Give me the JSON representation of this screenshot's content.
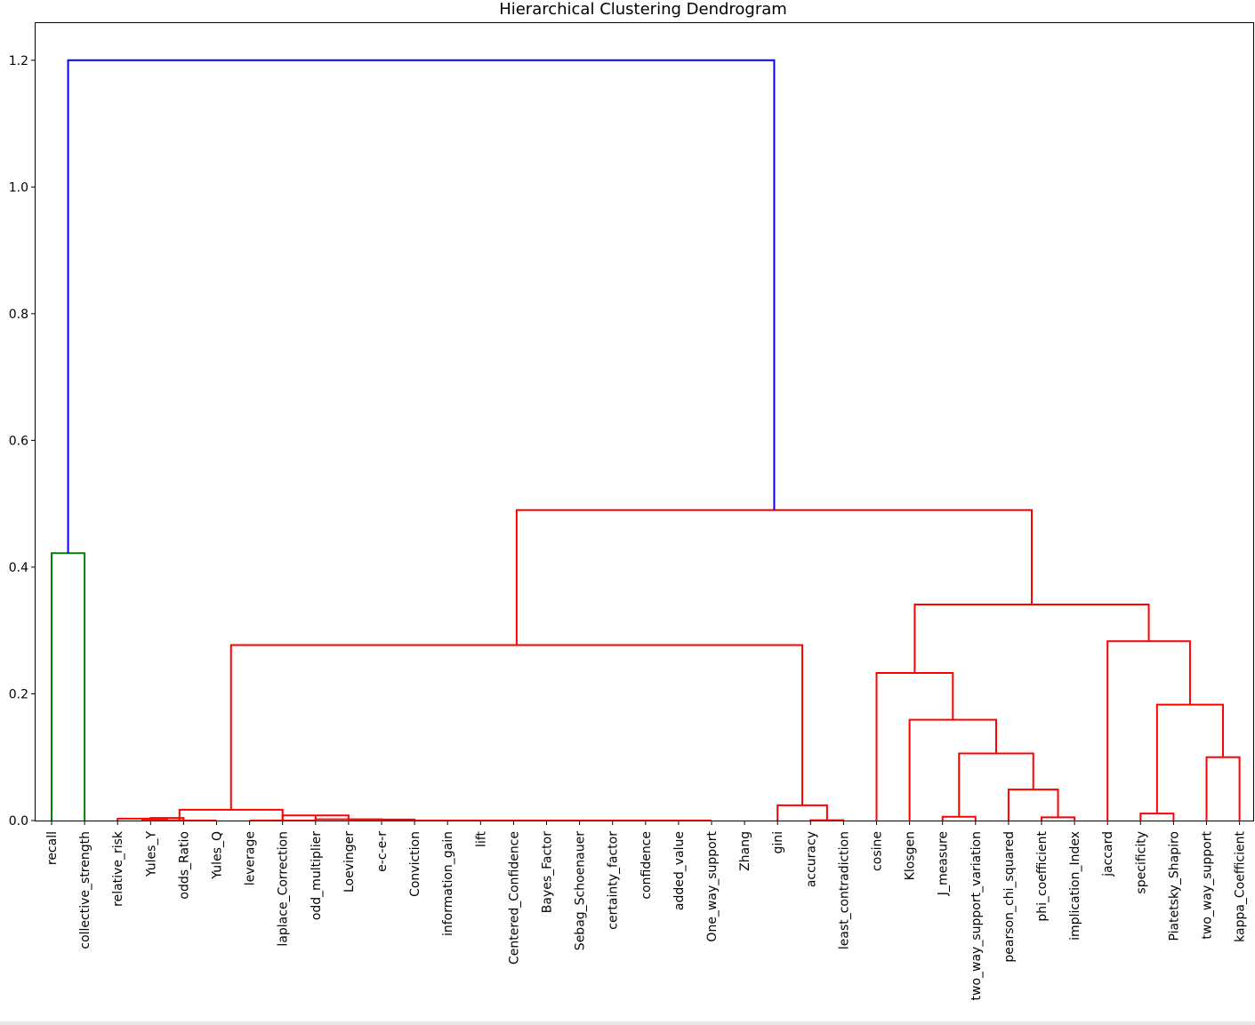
{
  "chart_data": {
    "type": "dendrogram",
    "title": "Hierarchical Clustering Dendrogram",
    "xlabel": "",
    "ylabel": "",
    "ylim": [
      0,
      1.26
    ],
    "yticks": [
      "0.0",
      "0.2",
      "0.4",
      "0.6",
      "0.8",
      "1.0",
      "1.2"
    ],
    "grid": false,
    "colors": {
      "root": "#0000ff",
      "cluster1": "#008000",
      "cluster2": "#ff0000",
      "frame": "#000000"
    },
    "leaves": [
      "recall",
      "collective_strength",
      "relative_risk",
      "Yules_Y",
      "odds_Ratio",
      "Yules_Q",
      "leverage",
      "laplace_Correction",
      "odd_multiplier",
      "Loevinger",
      "e-c-e-r",
      "Conviction",
      "information_gain",
      "lift",
      "Centered_Confidence",
      "Bayes_Factor",
      "Sebag_Schoenauer",
      "certainty_factor",
      "confidence",
      "added_value",
      "One_way_support",
      "Zhang",
      "gini",
      "accuracy",
      "least_contradiction",
      "cosine",
      "Klosgen",
      "J_measure",
      "two_way_support_variation",
      "pearson_chi_squared",
      "phi_coefficient",
      "implication_Index",
      "jaccard",
      "specificity",
      "Piatetsky_Shapiro",
      "two_way_support",
      "kappa_Coefficient"
    ],
    "merges": [
      {
        "id": "a",
        "left": 0,
        "right": 1,
        "height": 0.422,
        "color": "cluster1"
      },
      {
        "id": "b",
        "left": 3,
        "right": 4,
        "height": 0.004,
        "color": "cluster2"
      },
      {
        "id": "c",
        "left": 2,
        "right": "b",
        "height": 0.003,
        "color": "cluster2"
      },
      {
        "id": "d",
        "left": 19,
        "right": 20,
        "height": 0.0,
        "color": "cluster2"
      },
      {
        "id": "e",
        "left": 18,
        "right": "d",
        "height": 0.0,
        "color": "cluster2"
      },
      {
        "id": "f",
        "left": 17,
        "right": "e",
        "height": 0.0,
        "color": "cluster2"
      },
      {
        "id": "g",
        "left": 16,
        "right": "f",
        "height": 0.0,
        "color": "cluster2"
      },
      {
        "id": "h",
        "left": 15,
        "right": "g",
        "height": 0.0,
        "color": "cluster2"
      },
      {
        "id": "i",
        "left": 14,
        "right": "h",
        "height": 0.0,
        "color": "cluster2"
      },
      {
        "id": "j",
        "left": 13,
        "right": "i",
        "height": 0.0,
        "color": "cluster2"
      },
      {
        "id": "k",
        "left": 12,
        "right": "j",
        "height": 0.0,
        "color": "cluster2"
      },
      {
        "id": "l",
        "left": 11,
        "right": "k",
        "height": 0.0,
        "color": "cluster2"
      },
      {
        "id": "m",
        "left": 10,
        "right": "l",
        "height": 0.0,
        "color": "cluster2"
      },
      {
        "id": "n",
        "left": 9,
        "right": "m",
        "height": 0.0015,
        "color": "cluster2"
      },
      {
        "id": "o",
        "left": 8,
        "right": "n",
        "height": 0.002,
        "color": "cluster2"
      },
      {
        "id": "p",
        "left": 7,
        "right": "o",
        "height": 0.008,
        "color": "cluster2"
      },
      {
        "id": "q",
        "left": 6,
        "right": "p",
        "height": 0.0,
        "color": "cluster2"
      },
      {
        "id": "r",
        "left": "c",
        "right": 5,
        "height": 0.0,
        "color": "cluster2"
      },
      {
        "id": "s",
        "left": "r",
        "right": "q",
        "height": 0.017,
        "color": "cluster2"
      },
      {
        "id": "t",
        "left": 23,
        "right": 24,
        "height": 0.0005,
        "color": "cluster2"
      },
      {
        "id": "u",
        "left": 22,
        "right": "t",
        "height": 0.024,
        "color": "cluster2"
      },
      {
        "id": "v",
        "left": "s",
        "right": "u",
        "height": 0.277,
        "color": "cluster2"
      },
      {
        "id": "w",
        "left": 27,
        "right": 28,
        "height": 0.006,
        "color": "cluster2"
      },
      {
        "id": "x",
        "left": 30,
        "right": 31,
        "height": 0.005,
        "color": "cluster2"
      },
      {
        "id": "y",
        "left": 29,
        "right": "x",
        "height": 0.049,
        "color": "cluster2"
      },
      {
        "id": "z",
        "left": "w",
        "right": "y",
        "height": 0.106,
        "color": "cluster2"
      },
      {
        "id": "aa",
        "left": 26,
        "right": "z",
        "height": 0.159,
        "color": "cluster2"
      },
      {
        "id": "ab",
        "left": 25,
        "right": "aa",
        "height": 0.233,
        "color": "cluster2"
      },
      {
        "id": "ac",
        "left": 33,
        "right": 34,
        "height": 0.011,
        "color": "cluster2"
      },
      {
        "id": "ad",
        "left": 35,
        "right": 36,
        "height": 0.1,
        "color": "cluster2"
      },
      {
        "id": "ae",
        "left": "ac",
        "right": "ad",
        "height": 0.183,
        "color": "cluster2"
      },
      {
        "id": "af",
        "left": 32,
        "right": "ae",
        "height": 0.283,
        "color": "cluster2"
      },
      {
        "id": "ag",
        "left": "ab",
        "right": "af",
        "height": 0.341,
        "color": "cluster2"
      },
      {
        "id": "ah",
        "left": "v",
        "right": "ag",
        "height": 0.49,
        "color": "cluster2"
      },
      {
        "id": "ai",
        "left": "a",
        "right": "ah",
        "height": 1.2,
        "color": "root"
      }
    ]
  }
}
